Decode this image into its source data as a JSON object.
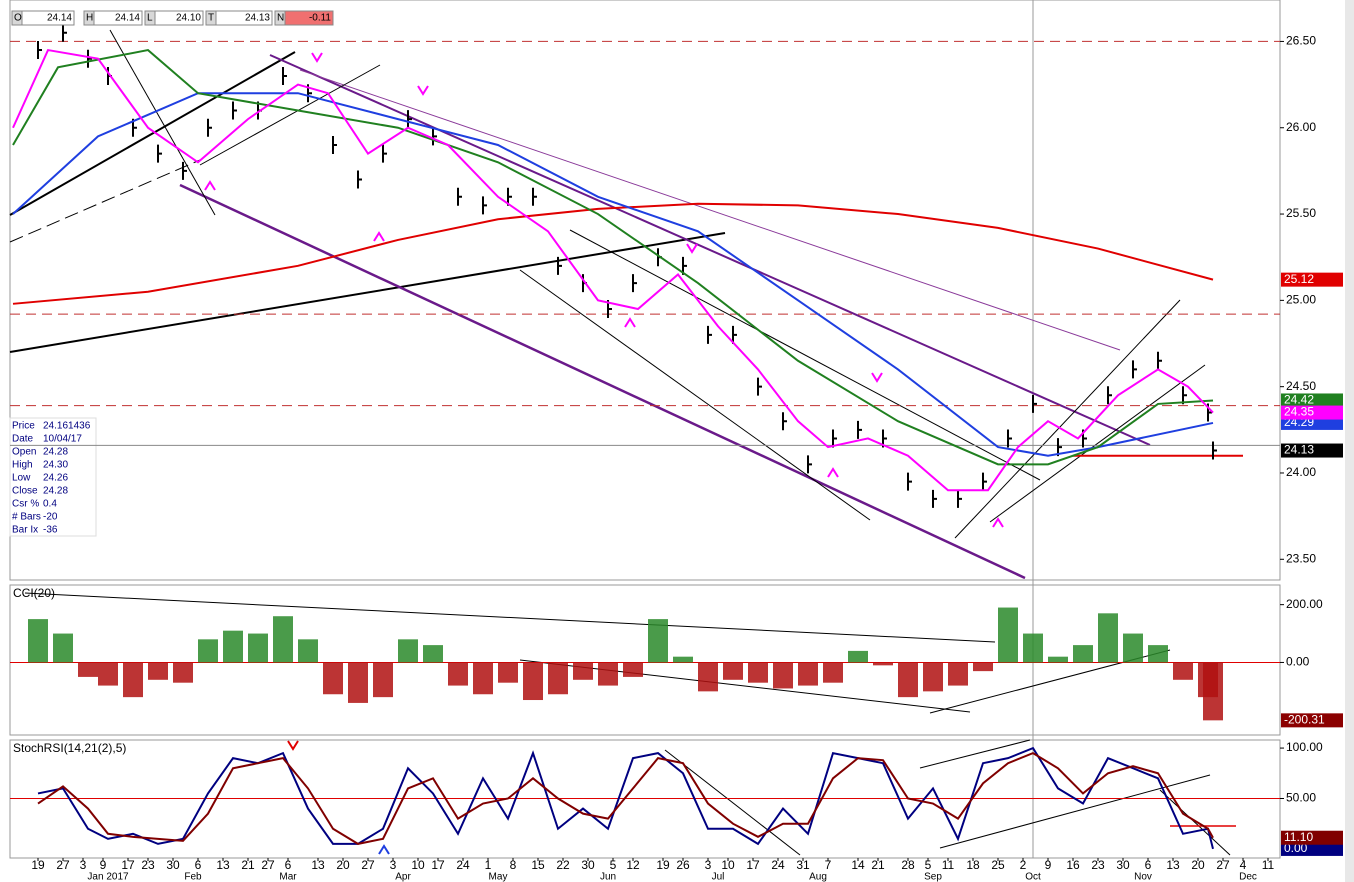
{
  "chart_data": [
    {
      "type": "line",
      "header": [
        {
          "label": "O",
          "value": "24.14"
        },
        {
          "label": "H",
          "value": "24.14"
        },
        {
          "label": "L",
          "value": "24.10"
        },
        {
          "label": "T",
          "value": "24.13"
        },
        {
          "label": "N",
          "value": "-0.11"
        }
      ],
      "info": [
        {
          "label": "Price",
          "value": "24.161436"
        },
        {
          "label": "Date",
          "value": "10/04/17"
        },
        {
          "label": "Open",
          "value": "24.28"
        },
        {
          "label": "High",
          "value": "24.30"
        },
        {
          "label": "Low",
          "value": "24.26"
        },
        {
          "label": "Close",
          "value": "24.28"
        },
        {
          "label": "Csr %",
          "value": "0.4"
        },
        {
          "label": "# Bars",
          "value": "-20"
        },
        {
          "label": "Bar Ix",
          "value": "-36"
        }
      ],
      "xlim": [
        -5.6,
        248.4
      ],
      "xticks": [
        {
          "value": 0,
          "label": "19"
        },
        {
          "value": 5,
          "label": "27"
        },
        {
          "value": 9,
          "label": "3"
        },
        {
          "value": 13,
          "label": "9"
        },
        {
          "value": 18,
          "label": "17"
        },
        {
          "value": 22,
          "label": "23"
        },
        {
          "value": 27,
          "label": "30"
        },
        {
          "value": 32,
          "label": "6"
        },
        {
          "value": 37,
          "label": "13"
        },
        {
          "value": 42,
          "label": "21"
        },
        {
          "value": 46,
          "label": "27"
        },
        {
          "value": 50,
          "label": "6"
        },
        {
          "value": 56,
          "label": "13"
        },
        {
          "value": 61,
          "label": "20"
        },
        {
          "value": 66,
          "label": "27"
        },
        {
          "value": 71,
          "label": "3"
        },
        {
          "value": 76,
          "label": "10"
        },
        {
          "value": 80,
          "label": "17"
        },
        {
          "value": 85,
          "label": "24"
        },
        {
          "value": 90,
          "label": "1"
        },
        {
          "value": 95,
          "label": "8"
        },
        {
          "value": 100,
          "label": "15"
        },
        {
          "value": 105,
          "label": "22"
        },
        {
          "value": 110,
          "label": "30"
        },
        {
          "value": 115,
          "label": "5"
        },
        {
          "value": 119,
          "label": "12"
        },
        {
          "value": 125,
          "label": "19"
        },
        {
          "value": 129,
          "label": "26"
        },
        {
          "value": 134,
          "label": "3"
        },
        {
          "value": 138,
          "label": "10"
        },
        {
          "value": 143,
          "label": "17"
        },
        {
          "value": 148,
          "label": "24"
        },
        {
          "value": 153,
          "label": "31"
        },
        {
          "value": 158,
          "label": "7"
        },
        {
          "value": 164,
          "label": "14"
        },
        {
          "value": 168,
          "label": "21"
        },
        {
          "value": 174,
          "label": "28"
        },
        {
          "value": 178,
          "label": "5"
        },
        {
          "value": 182,
          "label": "11"
        },
        {
          "value": 187,
          "label": "18"
        },
        {
          "value": 192,
          "label": "25"
        },
        {
          "value": 197,
          "label": "2"
        },
        {
          "value": 202,
          "label": "9"
        },
        {
          "value": 207,
          "label": "16"
        },
        {
          "value": 212,
          "label": "23"
        },
        {
          "value": 217,
          "label": "30"
        },
        {
          "value": 222,
          "label": "6"
        },
        {
          "value": 227,
          "label": "13"
        },
        {
          "value": 232,
          "label": "20"
        },
        {
          "value": 237,
          "label": "27"
        },
        {
          "value": 241,
          "label": "4"
        },
        {
          "value": 246,
          "label": "11"
        }
      ],
      "months": [
        {
          "value": 14,
          "label": "Jan 2017"
        },
        {
          "value": 31,
          "label": "Feb"
        },
        {
          "value": 50,
          "label": "Mar"
        },
        {
          "value": 73,
          "label": "Apr"
        },
        {
          "value": 92,
          "label": "May"
        },
        {
          "value": 114,
          "label": "Jun"
        },
        {
          "value": 136,
          "label": "Jul"
        },
        {
          "value": 156,
          "label": "Aug"
        },
        {
          "value": 179,
          "label": "Sep"
        },
        {
          "value": 199,
          "label": "Oct"
        },
        {
          "value": 221,
          "label": "Nov"
        },
        {
          "value": 242,
          "label": "Dec"
        }
      ],
      "ylim": [
        23.38,
        26.74
      ],
      "yticks": [
        {
          "value": 23.5,
          "label": "23.50"
        },
        {
          "value": 24,
          "label": "24.00"
        },
        {
          "value": 24.5,
          "label": "24.50"
        },
        {
          "value": 25,
          "label": "25.00"
        },
        {
          "value": 25.5,
          "label": "25.50"
        },
        {
          "value": 26,
          "label": "26.00"
        },
        {
          "value": 26.5,
          "label": "26.50"
        }
      ],
      "hlines": [
        {
          "value": 26.5,
          "color": "#c03030",
          "dash": true
        },
        {
          "value": 24.92,
          "color": "#c03030",
          "dash": true
        },
        {
          "value": 24.39,
          "color": "#c03030",
          "dash": true
        },
        {
          "value": 24.16,
          "color": "#888888",
          "dash": false
        },
        {
          "value": 24.1,
          "color": "#e00000",
          "dash": false,
          "x": [
            207,
            241
          ]
        }
      ],
      "series": [
        {
          "style": "bars",
          "color": "#000000",
          "label_bg": "#000000",
          "x": [
            0,
            5,
            10,
            14,
            19,
            24,
            29,
            34,
            39,
            44,
            49,
            54,
            59,
            64,
            69,
            74,
            79,
            84,
            89,
            94,
            99,
            104,
            109,
            114,
            119,
            124,
            129,
            134,
            139,
            144,
            149,
            154,
            159,
            164,
            169,
            174,
            179,
            184,
            189,
            194,
            199,
            204,
            209,
            214,
            219,
            224,
            229,
            234,
            235
          ],
          "values": [
            26.45,
            26.55,
            26.4,
            26.3,
            26.0,
            25.85,
            25.75,
            26.0,
            26.1,
            26.1,
            26.3,
            26.2,
            25.9,
            25.7,
            25.85,
            26.05,
            25.95,
            25.6,
            25.55,
            25.6,
            25.6,
            25.2,
            25.1,
            24.95,
            25.1,
            25.25,
            25.2,
            24.8,
            24.8,
            24.5,
            24.3,
            24.05,
            24.2,
            24.25,
            24.2,
            23.95,
            23.85,
            23.85,
            23.95,
            24.2,
            24.4,
            24.15,
            24.2,
            24.45,
            24.6,
            24.65,
            24.45,
            24.35,
            24.13
          ]
        },
        {
          "color": "#e00000",
          "label_bg": "#e00000",
          "x": [
            -5,
            22,
            52,
            72,
            92,
            112,
            132,
            152,
            172,
            192,
            212,
            235
          ],
          "values": [
            24.98,
            25.05,
            25.2,
            25.35,
            25.47,
            25.53,
            25.56,
            25.55,
            25.5,
            25.42,
            25.3,
            25.12
          ]
        },
        {
          "color": "#1f3fe0",
          "label_bg": "#1f3fe0",
          "x": [
            -5,
            12,
            32,
            52,
            72,
            92,
            112,
            132,
            152,
            172,
            192,
            202,
            212,
            235
          ],
          "values": [
            25.5,
            25.95,
            26.2,
            26.2,
            26.05,
            25.9,
            25.6,
            25.4,
            25.0,
            24.6,
            24.15,
            24.1,
            24.15,
            24.29
          ]
        },
        {
          "color": "#208020",
          "label_bg": "#208020",
          "x": [
            -5,
            4,
            22,
            32,
            52,
            72,
            92,
            112,
            132,
            152,
            172,
            192,
            202,
            212,
            224,
            235
          ],
          "values": [
            25.9,
            26.35,
            26.45,
            26.2,
            26.1,
            26.0,
            25.8,
            25.5,
            25.1,
            24.65,
            24.3,
            24.05,
            24.05,
            24.15,
            24.4,
            24.42
          ]
        },
        {
          "color": "#ff00ff",
          "label_bg": "#ff00ff",
          "x": [
            -5,
            2,
            12,
            22,
            32,
            42,
            52,
            58,
            66,
            74,
            82,
            92,
            102,
            112,
            120,
            128,
            136,
            144,
            152,
            158,
            166,
            174,
            182,
            190,
            196,
            202,
            208,
            216,
            224,
            230,
            235
          ],
          "values": [
            26.0,
            26.45,
            26.4,
            26.0,
            25.8,
            26.05,
            26.25,
            26.2,
            25.85,
            26.0,
            25.9,
            25.6,
            25.4,
            25.0,
            24.95,
            25.15,
            24.85,
            24.6,
            24.3,
            24.15,
            24.2,
            24.1,
            23.9,
            23.9,
            24.15,
            24.3,
            24.2,
            24.45,
            24.6,
            24.5,
            24.35
          ]
        }
      ]
    },
    {
      "type": "bar",
      "label": "CCI(20)",
      "xlim": [
        -5.6,
        248.4
      ],
      "x": [
        0,
        5,
        10,
        14,
        19,
        24,
        29,
        34,
        39,
        44,
        49,
        54,
        59,
        64,
        69,
        74,
        79,
        84,
        89,
        94,
        99,
        104,
        109,
        114,
        119,
        124,
        129,
        134,
        139,
        144,
        149,
        154,
        159,
        164,
        169,
        174,
        179,
        184,
        189,
        194,
        199,
        204,
        209,
        214,
        219,
        224,
        229,
        234,
        235
      ],
      "values": [
        150,
        100,
        -50,
        -80,
        -120,
        -60,
        -70,
        80,
        110,
        100,
        160,
        80,
        -110,
        -140,
        -120,
        80,
        60,
        -80,
        -110,
        -70,
        -130,
        -110,
        -60,
        -80,
        -50,
        150,
        20,
        -100,
        -60,
        -70,
        -90,
        -80,
        -70,
        40,
        -10,
        -120,
        -100,
        -80,
        -30,
        190,
        100,
        20,
        60,
        170,
        100,
        60,
        -60,
        -120,
        -200.31
      ],
      "colors": {
        "up": "#2a8a2a",
        "down": "#b01010"
      },
      "label_bg": "#8b0000",
      "ylim": [
        -251,
        268
      ],
      "yticks": [
        {
          "value": 200,
          "label": "200.00"
        },
        {
          "value": 0,
          "label": "0.00"
        }
      ],
      "hlines": [
        {
          "value": 0,
          "color": "#e00000",
          "dash": false
        }
      ]
    },
    {
      "type": "line",
      "label": "StochRSI(14,21(2),5)",
      "xlim": [
        -5.6,
        248.4
      ],
      "ylim": [
        -9,
        108
      ],
      "yticks": [
        {
          "value": 100,
          "label": "100.00"
        },
        {
          "value": 50,
          "label": "50.00"
        }
      ],
      "hlines": [
        {
          "value": 50,
          "color": "#e00000",
          "dash": false
        }
      ],
      "series": [
        {
          "color": "#000080",
          "label_bg": "#000080",
          "x": [
            0,
            5,
            10,
            14,
            19,
            24,
            29,
            34,
            39,
            44,
            49,
            54,
            59,
            64,
            69,
            74,
            79,
            84,
            89,
            94,
            99,
            104,
            109,
            114,
            119,
            124,
            129,
            134,
            139,
            144,
            149,
            154,
            159,
            164,
            169,
            174,
            179,
            184,
            189,
            194,
            199,
            204,
            209,
            214,
            219,
            224,
            229,
            234,
            235
          ],
          "values": [
            55,
            60,
            20,
            10,
            15,
            5,
            10,
            55,
            90,
            85,
            95,
            40,
            5,
            5,
            20,
            80,
            55,
            15,
            70,
            30,
            95,
            20,
            40,
            20,
            90,
            95,
            75,
            20,
            20,
            5,
            40,
            15,
            95,
            90,
            85,
            30,
            60,
            10,
            85,
            90,
            100,
            60,
            45,
            90,
            80,
            70,
            15,
            20,
            0
          ],
          "value_labels": [
            null,
            null,
            null,
            null,
            null,
            null,
            null,
            null,
            null,
            null,
            null,
            null,
            null,
            null,
            null,
            null,
            null,
            null,
            null,
            null,
            null,
            null,
            null,
            null,
            null,
            null,
            null,
            null,
            null,
            null,
            null,
            null,
            null,
            null,
            null,
            null,
            null,
            null,
            null,
            null,
            null,
            null,
            null,
            null,
            null,
            null,
            null,
            null,
            "0.00"
          ]
        },
        {
          "color": "#800000",
          "label_bg": "#800000",
          "x": [
            0,
            5,
            10,
            14,
            19,
            24,
            29,
            34,
            39,
            44,
            49,
            54,
            59,
            64,
            69,
            74,
            79,
            84,
            89,
            94,
            99,
            104,
            109,
            114,
            119,
            124,
            129,
            134,
            139,
            144,
            149,
            154,
            159,
            164,
            169,
            174,
            179,
            184,
            189,
            194,
            199,
            204,
            209,
            214,
            219,
            224,
            229,
            234,
            235
          ],
          "values": [
            45,
            62,
            40,
            15,
            12,
            10,
            8,
            35,
            80,
            85,
            90,
            60,
            20,
            5,
            10,
            60,
            70,
            30,
            45,
            50,
            70,
            50,
            35,
            30,
            60,
            90,
            85,
            45,
            25,
            12,
            25,
            25,
            70,
            90,
            88,
            50,
            45,
            30,
            65,
            85,
            95,
            80,
            55,
            75,
            82,
            75,
            35,
            20,
            11.1
          ],
          "value_labels": [
            null,
            null,
            null,
            null,
            null,
            null,
            null,
            null,
            null,
            null,
            null,
            null,
            null,
            null,
            null,
            null,
            null,
            null,
            null,
            null,
            null,
            null,
            null,
            null,
            null,
            null,
            null,
            null,
            null,
            null,
            null,
            null,
            null,
            null,
            null,
            null,
            null,
            null,
            null,
            null,
            null,
            null,
            null,
            null,
            null,
            null,
            null,
            null,
            "11.10"
          ]
        }
      ]
    }
  ]
}
